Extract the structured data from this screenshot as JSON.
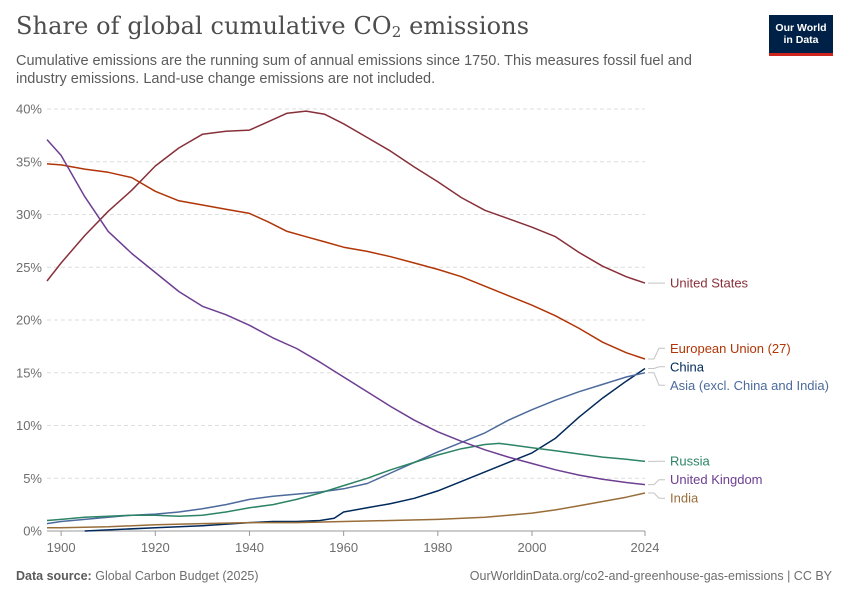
{
  "header": {
    "title_main": "Share of global cumulative CO",
    "title_sub": "2",
    "title_tail": " emissions",
    "subtitle": "Cumulative emissions are the running sum of annual emissions since 1750. This measures fossil fuel and industry emissions. Land-use change emissions are not included."
  },
  "logo": {
    "line1": "Our World",
    "line2": "in Data",
    "bg_color": "#002147",
    "accent_color": "#ce261e"
  },
  "footer": {
    "source_label": "Data source:",
    "source_value": "Global Carbon Budget (2025)",
    "url_license": "OurWorldinData.org/co2-and-greenhouse-gas-emissions | CC BY"
  },
  "chart_data": {
    "type": "line",
    "title": "Share of global cumulative CO₂ emissions",
    "xlim": [
      1897,
      2024
    ],
    "ylim": [
      0,
      40
    ],
    "x_ticks": [
      1900,
      1920,
      1940,
      1960,
      1980,
      2000,
      2024
    ],
    "y_ticks": [
      0,
      5,
      10,
      15,
      20,
      25,
      30,
      35,
      40
    ],
    "y_tick_suffix": "%",
    "grid": true,
    "legend": "labels-at-line-ends-right",
    "series": [
      {
        "name": "United States",
        "color": "#883039",
        "points": [
          [
            1897,
            23.7
          ],
          [
            1900,
            25.4
          ],
          [
            1905,
            28.0
          ],
          [
            1910,
            30.3
          ],
          [
            1915,
            32.3
          ],
          [
            1920,
            34.6
          ],
          [
            1925,
            36.3
          ],
          [
            1930,
            37.6
          ],
          [
            1935,
            37.9
          ],
          [
            1940,
            38.0
          ],
          [
            1944,
            38.8
          ],
          [
            1948,
            39.6
          ],
          [
            1952,
            39.8
          ],
          [
            1956,
            39.5
          ],
          [
            1960,
            38.6
          ],
          [
            1965,
            37.3
          ],
          [
            1970,
            36.0
          ],
          [
            1975,
            34.5
          ],
          [
            1980,
            33.1
          ],
          [
            1985,
            31.6
          ],
          [
            1990,
            30.4
          ],
          [
            1995,
            29.6
          ],
          [
            2000,
            28.8
          ],
          [
            2005,
            27.9
          ],
          [
            2010,
            26.4
          ],
          [
            2015,
            25.1
          ],
          [
            2020,
            24.1
          ],
          [
            2024,
            23.5
          ]
        ]
      },
      {
        "name": "European Union (27)",
        "color": "#b13507",
        "points": [
          [
            1897,
            34.8
          ],
          [
            1900,
            34.7
          ],
          [
            1905,
            34.3
          ],
          [
            1910,
            34.0
          ],
          [
            1915,
            33.5
          ],
          [
            1920,
            32.2
          ],
          [
            1925,
            31.3
          ],
          [
            1930,
            30.9
          ],
          [
            1935,
            30.5
          ],
          [
            1940,
            30.1
          ],
          [
            1944,
            29.3
          ],
          [
            1948,
            28.4
          ],
          [
            1952,
            27.9
          ],
          [
            1956,
            27.4
          ],
          [
            1960,
            26.9
          ],
          [
            1965,
            26.5
          ],
          [
            1970,
            26.0
          ],
          [
            1975,
            25.4
          ],
          [
            1980,
            24.8
          ],
          [
            1985,
            24.1
          ],
          [
            1990,
            23.2
          ],
          [
            1995,
            22.3
          ],
          [
            2000,
            21.4
          ],
          [
            2005,
            20.4
          ],
          [
            2010,
            19.2
          ],
          [
            2015,
            17.9
          ],
          [
            2020,
            16.9
          ],
          [
            2024,
            16.3
          ]
        ]
      },
      {
        "name": "China",
        "color": "#00295b",
        "points": [
          [
            1905,
            0.0
          ],
          [
            1910,
            0.1
          ],
          [
            1920,
            0.3
          ],
          [
            1930,
            0.5
          ],
          [
            1940,
            0.8
          ],
          [
            1945,
            0.9
          ],
          [
            1950,
            0.9
          ],
          [
            1955,
            1.0
          ],
          [
            1958,
            1.2
          ],
          [
            1960,
            1.8
          ],
          [
            1965,
            2.2
          ],
          [
            1970,
            2.6
          ],
          [
            1975,
            3.1
          ],
          [
            1980,
            3.8
          ],
          [
            1985,
            4.7
          ],
          [
            1990,
            5.6
          ],
          [
            1995,
            6.5
          ],
          [
            2000,
            7.4
          ],
          [
            2005,
            8.8
          ],
          [
            2010,
            10.8
          ],
          [
            2015,
            12.6
          ],
          [
            2020,
            14.2
          ],
          [
            2024,
            15.4
          ]
        ]
      },
      {
        "name": "Asia (excl. China and India)",
        "color": "#4c6a9c",
        "points": [
          [
            1897,
            0.7
          ],
          [
            1900,
            0.9
          ],
          [
            1905,
            1.1
          ],
          [
            1910,
            1.3
          ],
          [
            1915,
            1.5
          ],
          [
            1920,
            1.6
          ],
          [
            1925,
            1.8
          ],
          [
            1930,
            2.1
          ],
          [
            1935,
            2.5
          ],
          [
            1940,
            3.0
          ],
          [
            1945,
            3.3
          ],
          [
            1950,
            3.5
          ],
          [
            1955,
            3.7
          ],
          [
            1960,
            4.0
          ],
          [
            1965,
            4.5
          ],
          [
            1970,
            5.5
          ],
          [
            1975,
            6.5
          ],
          [
            1980,
            7.5
          ],
          [
            1985,
            8.4
          ],
          [
            1990,
            9.3
          ],
          [
            1995,
            10.5
          ],
          [
            2000,
            11.5
          ],
          [
            2005,
            12.4
          ],
          [
            2010,
            13.2
          ],
          [
            2015,
            13.9
          ],
          [
            2020,
            14.6
          ],
          [
            2024,
            15.0
          ]
        ]
      },
      {
        "name": "Russia",
        "color": "#2c8465",
        "points": [
          [
            1897,
            1.0
          ],
          [
            1900,
            1.1
          ],
          [
            1905,
            1.3
          ],
          [
            1910,
            1.4
          ],
          [
            1915,
            1.5
          ],
          [
            1920,
            1.5
          ],
          [
            1925,
            1.4
          ],
          [
            1930,
            1.5
          ],
          [
            1935,
            1.8
          ],
          [
            1940,
            2.2
          ],
          [
            1945,
            2.5
          ],
          [
            1950,
            3.0
          ],
          [
            1955,
            3.6
          ],
          [
            1960,
            4.3
          ],
          [
            1965,
            5.0
          ],
          [
            1970,
            5.8
          ],
          [
            1975,
            6.5
          ],
          [
            1980,
            7.2
          ],
          [
            1985,
            7.8
          ],
          [
            1990,
            8.2
          ],
          [
            1993,
            8.3
          ],
          [
            1995,
            8.2
          ],
          [
            2000,
            7.9
          ],
          [
            2005,
            7.6
          ],
          [
            2010,
            7.3
          ],
          [
            2015,
            7.0
          ],
          [
            2020,
            6.8
          ],
          [
            2024,
            6.6
          ]
        ]
      },
      {
        "name": "United Kingdom",
        "color": "#6d3e91",
        "points": [
          [
            1897,
            37.1
          ],
          [
            1900,
            35.6
          ],
          [
            1905,
            31.7
          ],
          [
            1910,
            28.4
          ],
          [
            1915,
            26.3
          ],
          [
            1920,
            24.5
          ],
          [
            1925,
            22.7
          ],
          [
            1930,
            21.3
          ],
          [
            1935,
            20.5
          ],
          [
            1940,
            19.5
          ],
          [
            1945,
            18.3
          ],
          [
            1950,
            17.3
          ],
          [
            1955,
            16.0
          ],
          [
            1960,
            14.6
          ],
          [
            1965,
            13.2
          ],
          [
            1970,
            11.8
          ],
          [
            1975,
            10.5
          ],
          [
            1980,
            9.4
          ],
          [
            1985,
            8.5
          ],
          [
            1990,
            7.7
          ],
          [
            1995,
            7.0
          ],
          [
            2000,
            6.4
          ],
          [
            2005,
            5.8
          ],
          [
            2010,
            5.3
          ],
          [
            2015,
            4.9
          ],
          [
            2020,
            4.6
          ],
          [
            2024,
            4.4
          ]
        ]
      },
      {
        "name": "India",
        "color": "#986d39",
        "points": [
          [
            1897,
            0.3
          ],
          [
            1900,
            0.3
          ],
          [
            1910,
            0.4
          ],
          [
            1920,
            0.6
          ],
          [
            1930,
            0.7
          ],
          [
            1940,
            0.8
          ],
          [
            1950,
            0.8
          ],
          [
            1960,
            0.9
          ],
          [
            1970,
            1.0
          ],
          [
            1980,
            1.1
          ],
          [
            1990,
            1.3
          ],
          [
            1995,
            1.5
          ],
          [
            2000,
            1.7
          ],
          [
            2005,
            2.0
          ],
          [
            2010,
            2.4
          ],
          [
            2015,
            2.8
          ],
          [
            2020,
            3.2
          ],
          [
            2024,
            3.6
          ]
        ]
      }
    ],
    "label_order": [
      "United States",
      "European Union (27)",
      "China",
      "Asia (excl. China and India)",
      "Russia",
      "United Kingdom",
      "India"
    ]
  }
}
